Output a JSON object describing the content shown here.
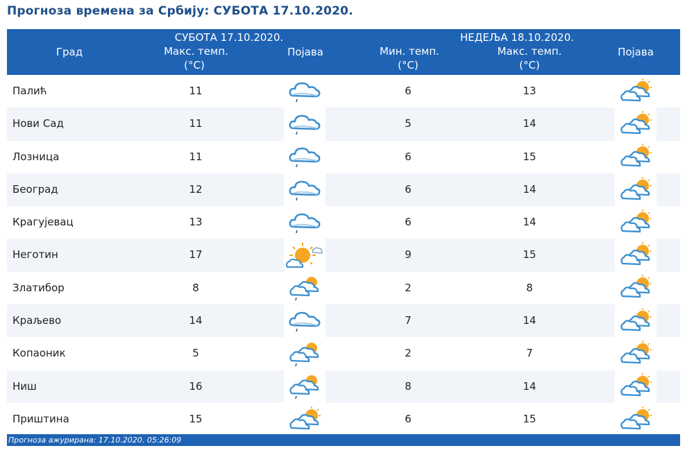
{
  "page_title": "Прогноза времена за Србију: СУБОТА  17.10.2020.",
  "header": {
    "city": "Град",
    "day1": "СУБОТА  17.10.2020.",
    "day2": "НЕДЕЉА  18.10.2020.",
    "max_temp": "Макс. темп.",
    "min_temp": "Мин. темп.",
    "unit": "(°C)",
    "phenomenon": "Појава"
  },
  "rows": [
    {
      "city": "Палић",
      "max1": "11",
      "icon1": "cloud-drizzle-icon",
      "min2": "6",
      "max2": "13",
      "icon2": "partly-cloudy-icon"
    },
    {
      "city": "Нови Сад",
      "max1": "11",
      "icon1": "cloud-drizzle-icon",
      "min2": "5",
      "max2": "14",
      "icon2": "partly-cloudy-icon"
    },
    {
      "city": "Лозница",
      "max1": "11",
      "icon1": "cloud-drizzle-icon",
      "min2": "6",
      "max2": "15",
      "icon2": "partly-cloudy-icon"
    },
    {
      "city": "Београд",
      "max1": "12",
      "icon1": "cloud-drizzle-icon",
      "min2": "6",
      "max2": "14",
      "icon2": "partly-cloudy-icon"
    },
    {
      "city": "Крагујевац",
      "max1": "13",
      "icon1": "cloud-drizzle-icon",
      "min2": "6",
      "max2": "14",
      "icon2": "partly-cloudy-icon"
    },
    {
      "city": "Неготин",
      "max1": "17",
      "icon1": "sunny-intervals-icon",
      "min2": "9",
      "max2": "15",
      "icon2": "partly-cloudy-icon"
    },
    {
      "city": "Златибор",
      "max1": "8",
      "icon1": "partly-cloudy-drizzle-icon",
      "min2": "2",
      "max2": "8",
      "icon2": "partly-cloudy-icon"
    },
    {
      "city": "Краљево",
      "max1": "14",
      "icon1": "cloud-drizzle-icon",
      "min2": "7",
      "max2": "14",
      "icon2": "partly-cloudy-icon"
    },
    {
      "city": "Копаоник",
      "max1": "5",
      "icon1": "partly-cloudy-drizzle-icon",
      "min2": "2",
      "max2": "7",
      "icon2": "partly-cloudy-icon"
    },
    {
      "city": "Ниш",
      "max1": "16",
      "icon1": "partly-cloudy-drizzle-icon",
      "min2": "8",
      "max2": "14",
      "icon2": "partly-cloudy-icon"
    },
    {
      "city": "Приштина",
      "max1": "15",
      "icon1": "partly-cloudy-icon",
      "min2": "6",
      "max2": "15",
      "icon2": "partly-cloudy-icon"
    }
  ],
  "footer": "Прогноза ажурирана:  17.10.2020. 05:26:09",
  "colors": {
    "header_bg": "#1e63b4",
    "title": "#1f4f8a",
    "row_alt": "#f1f4f9"
  }
}
